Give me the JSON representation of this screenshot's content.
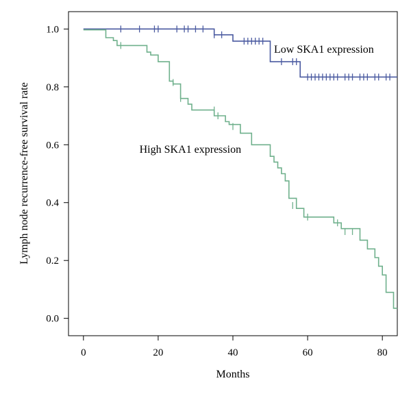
{
  "chart_data": {
    "type": "line",
    "title": "",
    "xlabel": "Months",
    "ylabel": "Lymph node recurrence-free survival rate",
    "xlim": [
      -4,
      84
    ],
    "ylim": [
      -0.06,
      1.06
    ],
    "x_ticks": [
      0,
      20,
      40,
      60,
      80
    ],
    "y_ticks": [
      0.0,
      0.2,
      0.4,
      0.6,
      0.8,
      1.0
    ],
    "x_tick_labels": [
      "0",
      "20",
      "40",
      "60",
      "80"
    ],
    "y_tick_labels": [
      "0.0",
      "0.2",
      "0.4",
      "0.6",
      "0.8",
      "1.0"
    ],
    "grid": false,
    "series": [
      {
        "name": "Low SKA1 expression",
        "color": "#4a5aa0",
        "label_x": 51,
        "label_y": 0.918,
        "steps": [
          [
            0,
            1.0
          ],
          [
            35,
            0.98
          ],
          [
            40,
            0.958
          ],
          [
            50,
            0.887
          ],
          [
            58,
            0.834
          ],
          [
            84,
            0.834
          ]
        ],
        "censors": [
          [
            10,
            1.0
          ],
          [
            15,
            1.0
          ],
          [
            19,
            1.0
          ],
          [
            20,
            1.0
          ],
          [
            25,
            1.0
          ],
          [
            27,
            1.0
          ],
          [
            28,
            1.0
          ],
          [
            30,
            1.0
          ],
          [
            32,
            1.0
          ],
          [
            35,
            0.98
          ],
          [
            37,
            0.98
          ],
          [
            43,
            0.958
          ],
          [
            44,
            0.958
          ],
          [
            45,
            0.958
          ],
          [
            46,
            0.958
          ],
          [
            47,
            0.958
          ],
          [
            48,
            0.958
          ],
          [
            53,
            0.887
          ],
          [
            56,
            0.887
          ],
          [
            57,
            0.887
          ],
          [
            60,
            0.834
          ],
          [
            61,
            0.834
          ],
          [
            62,
            0.834
          ],
          [
            63,
            0.834
          ],
          [
            64,
            0.834
          ],
          [
            65,
            0.834
          ],
          [
            66,
            0.834
          ],
          [
            67,
            0.834
          ],
          [
            68,
            0.834
          ],
          [
            70,
            0.834
          ],
          [
            71,
            0.834
          ],
          [
            72,
            0.834
          ],
          [
            74,
            0.834
          ],
          [
            75,
            0.834
          ],
          [
            76,
            0.834
          ],
          [
            78,
            0.834
          ],
          [
            79,
            0.834
          ],
          [
            81,
            0.834
          ],
          [
            82,
            0.834
          ]
        ]
      },
      {
        "name": "High SKA1 expression",
        "color": "#6fb08c",
        "label_x": 15,
        "label_y": 0.572,
        "steps": [
          [
            0,
            0.997
          ],
          [
            6,
            0.97
          ],
          [
            8,
            0.96
          ],
          [
            9,
            0.943
          ],
          [
            17,
            0.92
          ],
          [
            18,
            0.91
          ],
          [
            20,
            0.887
          ],
          [
            23,
            0.82
          ],
          [
            24,
            0.81
          ],
          [
            26,
            0.76
          ],
          [
            28,
            0.74
          ],
          [
            29,
            0.72
          ],
          [
            35,
            0.7
          ],
          [
            38,
            0.68
          ],
          [
            39,
            0.67
          ],
          [
            42,
            0.64
          ],
          [
            45,
            0.6
          ],
          [
            50,
            0.56
          ],
          [
            51,
            0.54
          ],
          [
            52,
            0.52
          ],
          [
            53,
            0.5
          ],
          [
            54,
            0.475
          ],
          [
            55,
            0.415
          ],
          [
            57,
            0.38
          ],
          [
            59,
            0.35
          ],
          [
            67,
            0.33
          ],
          [
            69,
            0.31
          ],
          [
            74,
            0.27
          ],
          [
            76,
            0.24
          ],
          [
            78,
            0.21
          ],
          [
            79,
            0.18
          ],
          [
            80,
            0.15
          ],
          [
            81,
            0.09
          ],
          [
            83,
            0.035
          ],
          [
            84,
            0.035
          ]
        ],
        "censors": [
          [
            10,
            0.943
          ],
          [
            24,
            0.815
          ],
          [
            26,
            0.76
          ],
          [
            35,
            0.72
          ],
          [
            36,
            0.7
          ],
          [
            40,
            0.663
          ],
          [
            56,
            0.39
          ],
          [
            60,
            0.35
          ],
          [
            68,
            0.33
          ],
          [
            70,
            0.3
          ],
          [
            72,
            0.3
          ]
        ]
      }
    ]
  }
}
